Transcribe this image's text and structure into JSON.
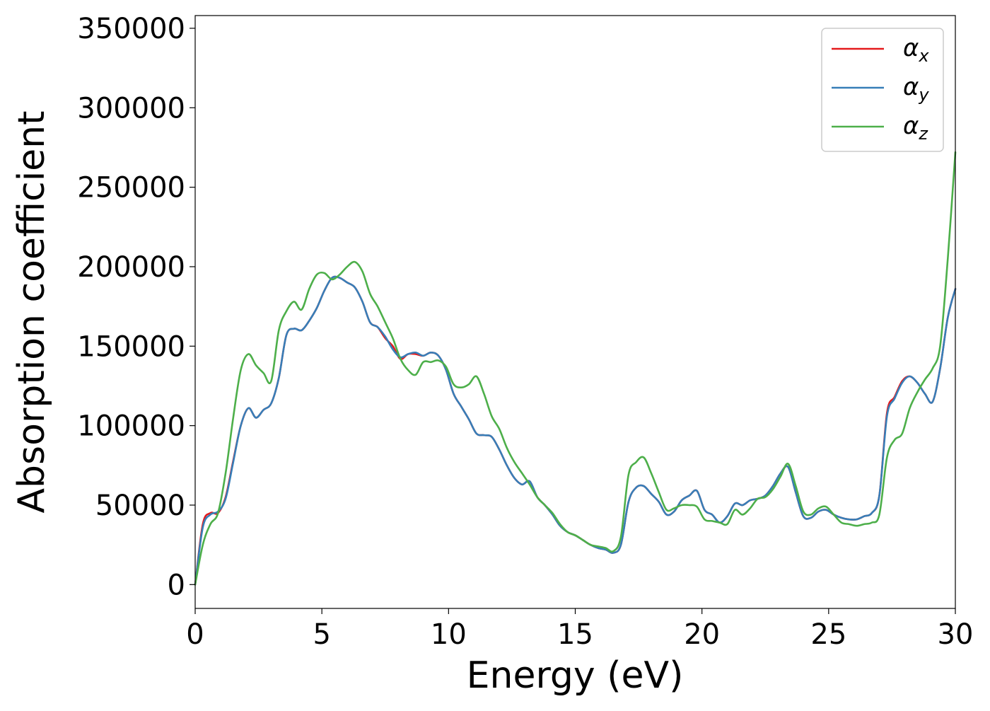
{
  "chart_data": {
    "type": "line",
    "title": "",
    "xlabel": "Energy (eV)",
    "ylabel": "Absorption coefficient",
    "xlim": [
      0,
      30
    ],
    "ylim": [
      -15000,
      358000
    ],
    "xticks": [
      0,
      5,
      10,
      15,
      20,
      25,
      30
    ],
    "yticks": [
      0,
      50000,
      100000,
      150000,
      200000,
      250000,
      300000,
      350000
    ],
    "xtick_labels": [
      "0",
      "5",
      "10",
      "15",
      "20",
      "25",
      "30"
    ],
    "ytick_labels": [
      "0",
      "50000",
      "100000",
      "150000",
      "200000",
      "250000",
      "300000",
      "350000"
    ],
    "grid": false,
    "legend_position": "top-right",
    "series": [
      {
        "name": "αx",
        "name_base": "α",
        "name_sub": "x",
        "color": "#e41a1c",
        "x": [
          0,
          0.3,
          0.6,
          0.9,
          1.2,
          1.5,
          1.8,
          2.1,
          2.4,
          2.7,
          3.0,
          3.3,
          3.6,
          3.9,
          4.2,
          4.5,
          4.8,
          5.1,
          5.4,
          5.7,
          6.0,
          6.3,
          6.6,
          6.9,
          7.2,
          7.5,
          7.8,
          8.1,
          8.4,
          8.7,
          9.0,
          9.3,
          9.6,
          9.9,
          10.2,
          10.5,
          10.8,
          11.1,
          11.4,
          11.7,
          12.0,
          12.3,
          12.6,
          12.9,
          13.2,
          13.5,
          13.8,
          14.1,
          14.4,
          14.7,
          15.0,
          15.3,
          15.6,
          15.9,
          16.2,
          16.5,
          16.8,
          17.1,
          17.4,
          17.7,
          18.0,
          18.3,
          18.6,
          18.9,
          19.2,
          19.5,
          19.8,
          20.1,
          20.4,
          20.7,
          21.0,
          21.3,
          21.6,
          21.9,
          22.2,
          22.5,
          22.8,
          23.1,
          23.4,
          23.7,
          24.0,
          24.3,
          24.6,
          24.9,
          25.2,
          25.5,
          25.8,
          26.1,
          26.4,
          26.7,
          27.0,
          27.3,
          27.6,
          27.9,
          28.2,
          28.5,
          28.8,
          29.1,
          29.4,
          29.7,
          30.0
        ],
        "y": [
          0,
          38000,
          45000,
          45000,
          55000,
          78000,
          100000,
          111000,
          105000,
          110000,
          114000,
          130000,
          157000,
          161000,
          160000,
          166000,
          174000,
          185000,
          193000,
          193000,
          190000,
          187000,
          178000,
          165000,
          162000,
          155000,
          150000,
          142000,
          145000,
          145000,
          144000,
          146000,
          144000,
          135000,
          120000,
          112000,
          104000,
          95000,
          94000,
          93000,
          85000,
          75000,
          67000,
          63000,
          65000,
          55000,
          50000,
          44000,
          37000,
          33000,
          31000,
          28000,
          25000,
          23000,
          22000,
          20000,
          25000,
          52000,
          61000,
          62000,
          57000,
          52000,
          44000,
          46000,
          53000,
          56000,
          59000,
          47000,
          44000,
          39000,
          43000,
          51000,
          50000,
          53000,
          54000,
          56000,
          62000,
          70000,
          74000,
          58000,
          43000,
          42000,
          46000,
          47000,
          44000,
          42000,
          41000,
          41000,
          43000,
          45000,
          56000,
          108000,
          118000,
          128000,
          131000,
          127000,
          120000,
          115000,
          136000,
          168000,
          186000
        ]
      },
      {
        "name": "αy",
        "name_base": "α",
        "name_sub": "y",
        "color": "#377eb8",
        "x": [
          0,
          0.3,
          0.6,
          0.9,
          1.2,
          1.5,
          1.8,
          2.1,
          2.4,
          2.7,
          3.0,
          3.3,
          3.6,
          3.9,
          4.2,
          4.5,
          4.8,
          5.1,
          5.4,
          5.7,
          6.0,
          6.3,
          6.6,
          6.9,
          7.2,
          7.5,
          7.8,
          8.1,
          8.4,
          8.7,
          9.0,
          9.3,
          9.6,
          9.9,
          10.2,
          10.5,
          10.8,
          11.1,
          11.4,
          11.7,
          12.0,
          12.3,
          12.6,
          12.9,
          13.2,
          13.5,
          13.8,
          14.1,
          14.4,
          14.7,
          15.0,
          15.3,
          15.6,
          15.9,
          16.2,
          16.5,
          16.8,
          17.1,
          17.4,
          17.7,
          18.0,
          18.3,
          18.6,
          18.9,
          19.2,
          19.5,
          19.8,
          20.1,
          20.4,
          20.7,
          21.0,
          21.3,
          21.6,
          21.9,
          22.2,
          22.5,
          22.8,
          23.1,
          23.4,
          23.7,
          24.0,
          24.3,
          24.6,
          24.9,
          25.2,
          25.5,
          25.8,
          26.1,
          26.4,
          26.7,
          27.0,
          27.3,
          27.6,
          27.9,
          28.2,
          28.5,
          28.8,
          29.1,
          29.4,
          29.7,
          30.0
        ],
        "y": [
          0,
          36000,
          44000,
          46000,
          54000,
          77000,
          100000,
          111000,
          105000,
          110000,
          114000,
          130000,
          157000,
          161000,
          160000,
          166000,
          174000,
          185000,
          193000,
          193000,
          190000,
          187000,
          178000,
          165000,
          162000,
          156000,
          148000,
          143000,
          145000,
          146000,
          144000,
          146000,
          144000,
          135000,
          120000,
          112000,
          104000,
          95000,
          94000,
          93000,
          85000,
          75000,
          67000,
          63000,
          65000,
          55000,
          50000,
          44000,
          37000,
          33000,
          31000,
          28000,
          25000,
          23000,
          22000,
          20000,
          25000,
          52000,
          61000,
          62000,
          57000,
          52000,
          44000,
          46000,
          53000,
          56000,
          59000,
          47000,
          44000,
          39000,
          43000,
          51000,
          50000,
          53000,
          54000,
          56000,
          62000,
          70000,
          74000,
          58000,
          43000,
          42000,
          46000,
          47000,
          44000,
          42000,
          41000,
          41000,
          43000,
          45000,
          56000,
          106000,
          117000,
          127000,
          131000,
          127000,
          120000,
          115000,
          136000,
          168000,
          186000
        ]
      },
      {
        "name": "αz",
        "name_base": "α",
        "name_sub": "z",
        "color": "#4daf4a",
        "x": [
          0,
          0.3,
          0.6,
          0.9,
          1.2,
          1.5,
          1.8,
          2.1,
          2.4,
          2.7,
          3.0,
          3.3,
          3.6,
          3.9,
          4.2,
          4.5,
          4.8,
          5.1,
          5.4,
          5.7,
          6.0,
          6.3,
          6.6,
          6.9,
          7.2,
          7.5,
          7.8,
          8.1,
          8.4,
          8.7,
          9.0,
          9.3,
          9.6,
          9.9,
          10.2,
          10.5,
          10.8,
          11.1,
          11.4,
          11.7,
          12.0,
          12.3,
          12.6,
          12.9,
          13.2,
          13.5,
          13.8,
          14.1,
          14.4,
          14.7,
          15.0,
          15.3,
          15.6,
          15.9,
          16.2,
          16.5,
          16.8,
          17.1,
          17.4,
          17.7,
          18.0,
          18.3,
          18.6,
          18.9,
          19.2,
          19.5,
          19.8,
          20.1,
          20.4,
          20.7,
          21.0,
          21.3,
          21.6,
          21.9,
          22.2,
          22.5,
          22.8,
          23.1,
          23.4,
          23.7,
          24.0,
          24.3,
          24.6,
          24.9,
          25.2,
          25.5,
          25.8,
          26.1,
          26.4,
          26.7,
          27.0,
          27.3,
          27.6,
          27.9,
          28.2,
          28.5,
          28.8,
          29.1,
          29.4,
          29.7,
          30.0
        ],
        "y": [
          0,
          25000,
          38000,
          45000,
          70000,
          105000,
          135000,
          145000,
          138000,
          133000,
          128000,
          160000,
          172000,
          178000,
          173000,
          186000,
          195000,
          196000,
          192000,
          195000,
          200000,
          203000,
          197000,
          183000,
          175000,
          165000,
          155000,
          142000,
          135000,
          132000,
          140000,
          140000,
          141000,
          137000,
          126000,
          124000,
          126000,
          131000,
          120000,
          106000,
          98000,
          86000,
          77000,
          70000,
          63000,
          55000,
          50000,
          45000,
          38000,
          33000,
          31000,
          28000,
          25000,
          24000,
          23000,
          21000,
          30000,
          69000,
          77000,
          80000,
          70000,
          58000,
          47000,
          48000,
          50000,
          50000,
          49000,
          41000,
          40000,
          39000,
          38000,
          47000,
          44000,
          48000,
          54000,
          55000,
          60000,
          68000,
          76000,
          62000,
          46000,
          44000,
          48000,
          49000,
          44000,
          39000,
          38000,
          37000,
          38000,
          39000,
          44000,
          80000,
          91000,
          95000,
          111000,
          121000,
          129000,
          136000,
          150000,
          205000,
          272000
        ]
      }
    ]
  }
}
